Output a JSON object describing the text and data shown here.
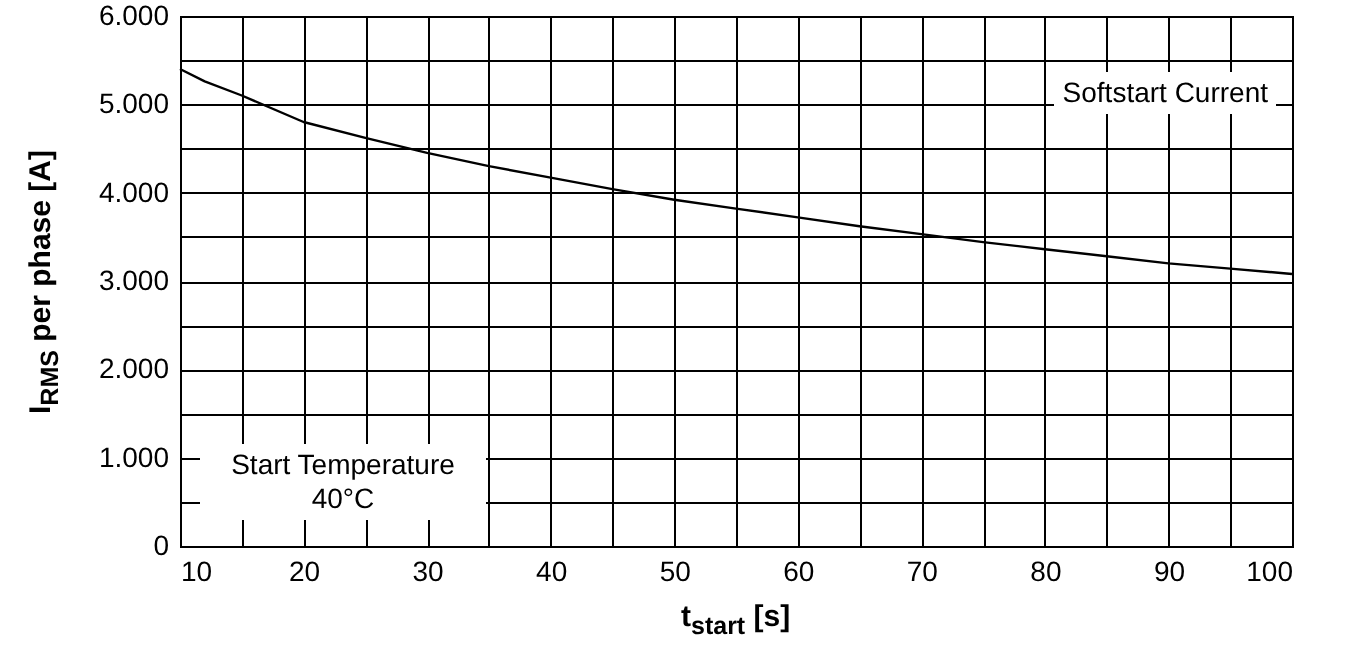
{
  "chart_data": {
    "type": "line",
    "xlabel": "t$_{start}$ [s]",
    "ylabel": "I$_{RMS}$ per phase [A]",
    "annotations": [
      "Softstart Current",
      "Start Temperature 40°C"
    ],
    "x": [
      10,
      12,
      15,
      20,
      25,
      30,
      35,
      40,
      45,
      50,
      55,
      60,
      65,
      70,
      75,
      80,
      85,
      90,
      95,
      100
    ],
    "series": [
      {
        "color": "#000000",
        "values": [
          5400,
          5260,
          5100,
          4800,
          4620,
          4450,
          4300,
          4170,
          4040,
          3920,
          3820,
          3720,
          3620,
          3530,
          3440,
          3360,
          3280,
          3200,
          3140,
          3080
        ]
      }
    ],
    "xlim": [
      10,
      100
    ],
    "ylim": [
      0,
      6000
    ],
    "xticks": [
      10,
      {
        "value": 15,
        "label": null
      },
      20,
      {
        "value": 25,
        "label": null
      },
      30,
      {
        "value": 35,
        "label": null
      },
      40,
      {
        "value": 45,
        "label": null
      },
      50,
      {
        "value": 55,
        "label": null
      },
      60,
      {
        "value": 65,
        "label": null
      },
      70,
      {
        "value": 75,
        "label": null
      },
      80,
      {
        "value": 85,
        "label": null
      },
      90,
      {
        "value": 95,
        "label": null
      },
      100
    ],
    "yticks": [
      0,
      {
        "value": 500,
        "label": null
      },
      {
        "value": 1000,
        "label": "1.000"
      },
      {
        "value": 1500,
        "label": null
      },
      {
        "value": 2000,
        "label": "2.000"
      },
      {
        "value": 2500,
        "label": null
      },
      {
        "value": 3000,
        "label": "3.000"
      },
      {
        "value": 3500,
        "label": null
      },
      {
        "value": 4000,
        "label": "4.000"
      },
      {
        "value": 4500,
        "label": null
      },
      {
        "value": 5000,
        "label": "5.000"
      },
      {
        "value": 5500,
        "label": null
      },
      {
        "value": 6000,
        "label": "6.000"
      }
    ],
    "grid": true
  }
}
